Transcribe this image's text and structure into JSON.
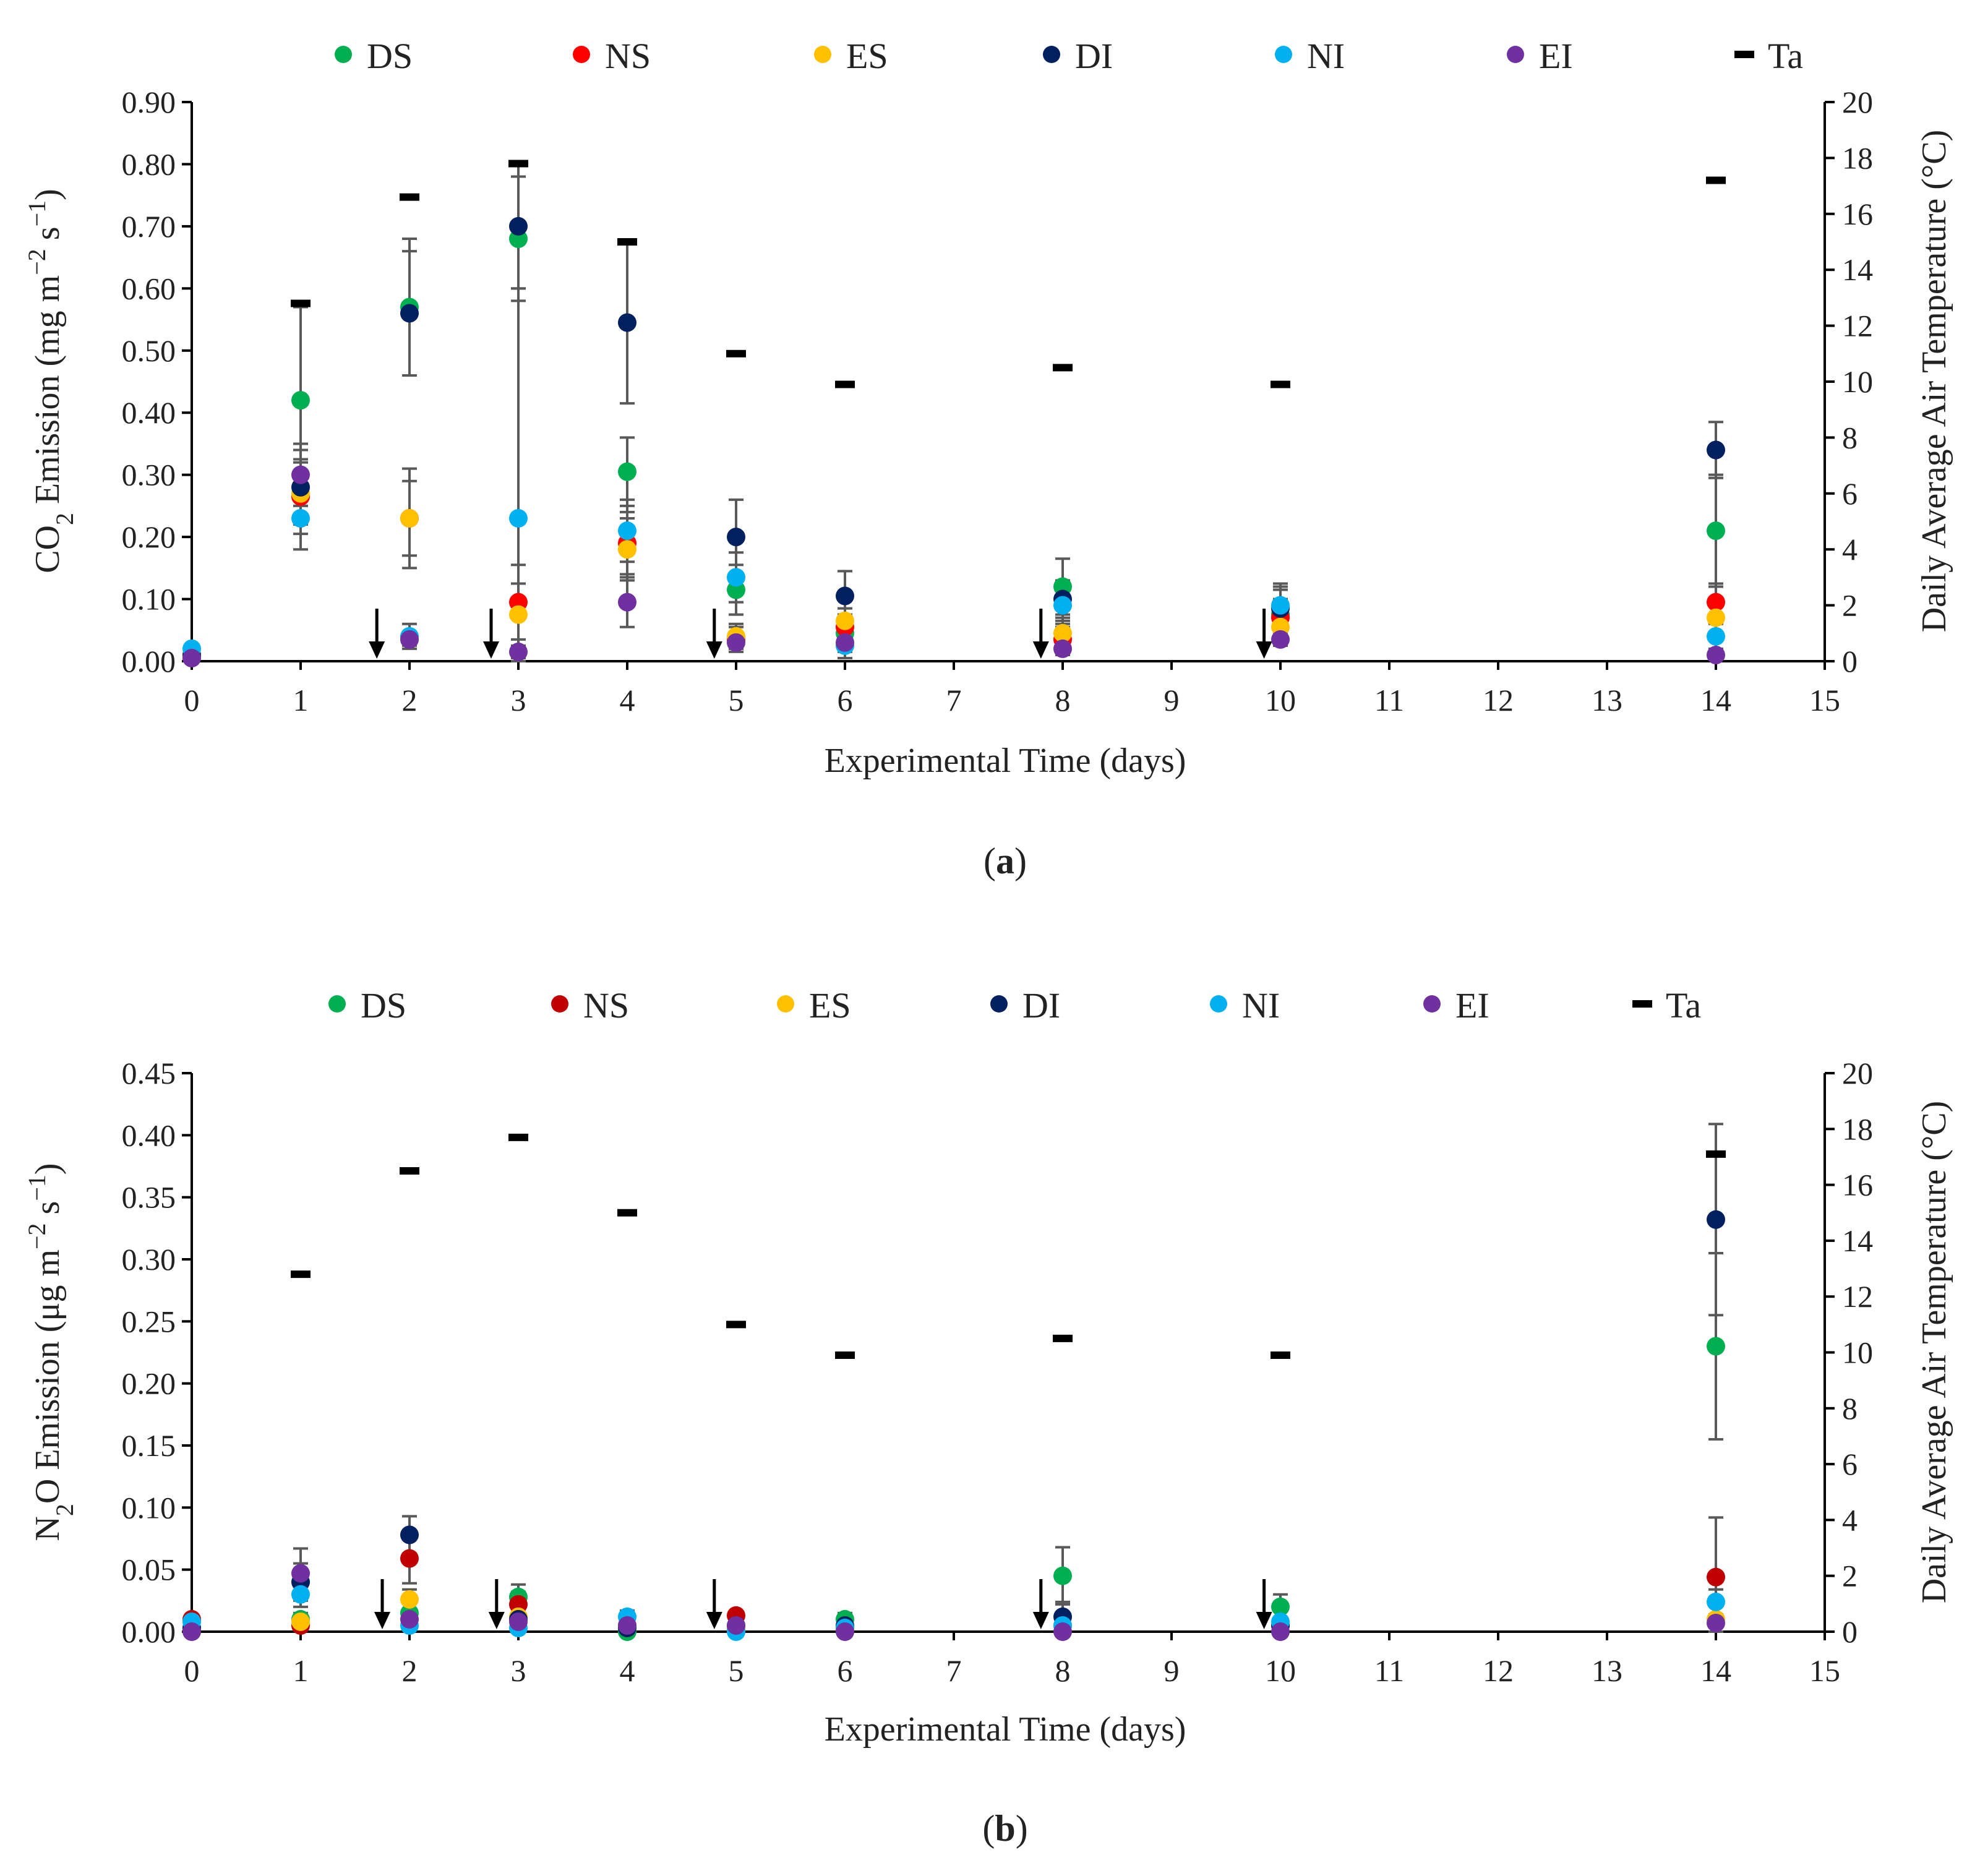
{
  "colors": {
    "DS": "#00b050",
    "NS": "#ff0000",
    "NS_b": "#c00000",
    "ES": "#ffc000",
    "DI": "#002060",
    "NI": "#00b0f0",
    "EI": "#7030a0",
    "Ta": "#000000"
  },
  "chart_data": [
    {
      "type": "scatter",
      "panel": "a",
      "caption_open": "(",
      "caption_letter": "a",
      "caption_close": ")",
      "title": "",
      "xlabel": "Experimental Time (days)",
      "ylabel": "CO2 Emission (mg m−2 s−1)",
      "ylabel_parts": [
        "CO",
        "2",
        " Emission (mg m",
        "−2",
        " s",
        "−1",
        ")"
      ],
      "y2label": "Daily Average Air Temperature (°C)",
      "xlim": [
        0,
        15
      ],
      "ylim": [
        0,
        0.9
      ],
      "y2lim": [
        0,
        20
      ],
      "x_ticks": [
        "0",
        "1",
        "2",
        "3",
        "4",
        "5",
        "6",
        "7",
        "8",
        "9",
        "10",
        "11",
        "12",
        "13",
        "14",
        "15"
      ],
      "y_ticks": [
        "0.00",
        "0.10",
        "0.20",
        "0.30",
        "0.40",
        "0.50",
        "0.60",
        "0.70",
        "0.80",
        "0.90"
      ],
      "y2_ticks": [
        "0",
        "2",
        "4",
        "6",
        "8",
        "10",
        "12",
        "14",
        "16",
        "18",
        "20"
      ],
      "legend": [
        {
          "name": "DS",
          "marker": "circle",
          "color_key": "DS"
        },
        {
          "name": "NS",
          "marker": "circle",
          "color_key": "NS"
        },
        {
          "name": "ES",
          "marker": "circle",
          "color_key": "ES"
        },
        {
          "name": "DI",
          "marker": "circle",
          "color_key": "DI"
        },
        {
          "name": "NI",
          "marker": "circle",
          "color_key": "NI"
        },
        {
          "name": "EI",
          "marker": "circle",
          "color_key": "EI"
        },
        {
          "name": "Ta",
          "marker": "dash",
          "color_key": "Ta"
        }
      ],
      "arrows_x": [
        1.7,
        2.75,
        4.8,
        7.8,
        9.85
      ],
      "series": [
        {
          "name": "DS",
          "color_key": "DS",
          "points": [
            {
              "x": 0,
              "y": 0.01
            },
            {
              "x": 1,
              "y": 0.42,
              "err": 0.15
            },
            {
              "x": 2,
              "y": 0.57,
              "err": 0.11
            },
            {
              "x": 3,
              "y": 0.68,
              "err": 0.1
            },
            {
              "x": 4,
              "y": 0.305,
              "err": 0.055
            },
            {
              "x": 5,
              "y": 0.115,
              "err": 0.04
            },
            {
              "x": 6,
              "y": 0.045,
              "err": 0.03
            },
            {
              "x": 8,
              "y": 0.12,
              "err": 0.045
            },
            {
              "x": 10,
              "y": 0.075,
              "err": 0.05
            },
            {
              "x": 14,
              "y": 0.21,
              "err": 0.09
            }
          ]
        },
        {
          "name": "NS",
          "color_key": "NS",
          "points": [
            {
              "x": 0,
              "y": 0.01
            },
            {
              "x": 1,
              "y": 0.265,
              "err": 0.06
            },
            {
              "x": 2,
              "y": 0.23,
              "err": 0.08
            },
            {
              "x": 3,
              "y": 0.095,
              "err": 0.06
            },
            {
              "x": 4,
              "y": 0.19,
              "err": 0.05
            },
            {
              "x": 5,
              "y": 0.035,
              "err": 0.02
            },
            {
              "x": 6,
              "y": 0.055,
              "err": 0.02
            },
            {
              "x": 8,
              "y": 0.035,
              "err": 0.02
            },
            {
              "x": 10,
              "y": 0.07,
              "err": 0.03
            },
            {
              "x": 14,
              "y": 0.095,
              "err": 0.03
            }
          ]
        },
        {
          "name": "ES",
          "color_key": "ES",
          "points": [
            {
              "x": 0,
              "y": 0.01
            },
            {
              "x": 1,
              "y": 0.27,
              "err": 0.05
            },
            {
              "x": 2,
              "y": 0.23,
              "err": 0.06
            },
            {
              "x": 3,
              "y": 0.075,
              "err": 0.05
            },
            {
              "x": 4,
              "y": 0.18,
              "err": 0.05
            },
            {
              "x": 5,
              "y": 0.04,
              "err": 0.02
            },
            {
              "x": 6,
              "y": 0.065,
              "err": 0.02
            },
            {
              "x": 8,
              "y": 0.045,
              "err": 0.02
            },
            {
              "x": 10,
              "y": 0.055,
              "err": 0.02
            },
            {
              "x": 14,
              "y": 0.07,
              "err": 0.03
            }
          ]
        },
        {
          "name": "DI",
          "color_key": "DI",
          "points": [
            {
              "x": 0,
              "y": 0.01
            },
            {
              "x": 1,
              "y": 0.28,
              "err": 0.06
            },
            {
              "x": 2,
              "y": 0.56,
              "err": 0.1
            },
            {
              "x": 3,
              "y": 0.7,
              "err": 0.1
            },
            {
              "x": 4,
              "y": 0.545,
              "err": 0.13
            },
            {
              "x": 5,
              "y": 0.2,
              "err": 0.06
            },
            {
              "x": 6,
              "y": 0.105,
              "err": 0.04
            },
            {
              "x": 8,
              "y": 0.1,
              "err": 0.03
            },
            {
              "x": 10,
              "y": 0.085,
              "err": 0.03
            },
            {
              "x": 14,
              "y": 0.34,
              "err": 0.045
            }
          ]
        },
        {
          "name": "NI",
          "color_key": "NI",
          "points": [
            {
              "x": 0,
              "y": 0.02
            },
            {
              "x": 1,
              "y": 0.23,
              "err": 0.05
            },
            {
              "x": 2,
              "y": 0.04,
              "err": 0.02
            },
            {
              "x": 3,
              "y": 0.23,
              "err": 0.37
            },
            {
              "x": 4,
              "y": 0.21,
              "err": 0.05
            },
            {
              "x": 5,
              "y": 0.135,
              "err": 0.04
            },
            {
              "x": 6,
              "y": 0.025,
              "err": 0.02
            },
            {
              "x": 8,
              "y": 0.09,
              "err": 0.03
            },
            {
              "x": 10,
              "y": 0.09,
              "err": 0.03
            },
            {
              "x": 14,
              "y": 0.04,
              "err": 0.02
            }
          ]
        },
        {
          "name": "EI",
          "color_key": "EI",
          "points": [
            {
              "x": 0,
              "y": 0.005
            },
            {
              "x": 1,
              "y": 0.3,
              "err": 0.05
            },
            {
              "x": 2,
              "y": 0.035,
              "err": 0.01
            },
            {
              "x": 3,
              "y": 0.015,
              "err": 0.01
            },
            {
              "x": 4,
              "y": 0.095,
              "err": 0.04
            },
            {
              "x": 5,
              "y": 0.03,
              "err": 0.01
            },
            {
              "x": 6,
              "y": 0.03,
              "err": 0.01
            },
            {
              "x": 8,
              "y": 0.02,
              "err": 0.01
            },
            {
              "x": 10,
              "y": 0.035,
              "err": 0.01
            },
            {
              "x": 14,
              "y": 0.01,
              "err": 0.005
            }
          ]
        }
      ],
      "temperature": [
        {
          "x": 1,
          "y": 12.8
        },
        {
          "x": 2,
          "y": 16.6
        },
        {
          "x": 3,
          "y": 17.8
        },
        {
          "x": 4,
          "y": 15.0
        },
        {
          "x": 5,
          "y": 11.0
        },
        {
          "x": 6,
          "y": 9.9
        },
        {
          "x": 8,
          "y": 10.5
        },
        {
          "x": 10,
          "y": 9.9
        },
        {
          "x": 14,
          "y": 17.2
        }
      ]
    },
    {
      "type": "scatter",
      "panel": "b",
      "caption_open": "(",
      "caption_letter": "b",
      "caption_close": ")",
      "title": "",
      "xlabel": "Experimental Time (days)",
      "ylabel": "N2O Emission (μg m−2 s−1)",
      "ylabel_parts": [
        "N",
        "2",
        "O Emission (μg m",
        "−2",
        " s",
        "−1",
        ")"
      ],
      "y2label": "Daily Average Air Temperature (°C)",
      "xlim": [
        0,
        15
      ],
      "ylim": [
        0,
        0.45
      ],
      "y2lim": [
        0,
        20
      ],
      "x_ticks": [
        "0",
        "1",
        "2",
        "3",
        "4",
        "5",
        "6",
        "7",
        "8",
        "9",
        "10",
        "11",
        "12",
        "13",
        "14",
        "15"
      ],
      "y_ticks": [
        "0.00",
        "0.05",
        "0.10",
        "0.15",
        "0.20",
        "0.25",
        "0.30",
        "0.35",
        "0.40",
        "0.45"
      ],
      "y2_ticks": [
        "0",
        "2",
        "4",
        "6",
        "8",
        "10",
        "12",
        "14",
        "16",
        "18",
        "20"
      ],
      "legend": [
        {
          "name": "DS",
          "marker": "circle",
          "color_key": "DS"
        },
        {
          "name": "NS",
          "marker": "circle",
          "color_key": "NS_b"
        },
        {
          "name": "ES",
          "marker": "circle",
          "color_key": "ES"
        },
        {
          "name": "DI",
          "marker": "circle",
          "color_key": "DI"
        },
        {
          "name": "NI",
          "marker": "circle",
          "color_key": "NI"
        },
        {
          "name": "EI",
          "marker": "circle",
          "color_key": "EI"
        },
        {
          "name": "Ta",
          "marker": "dash",
          "color_key": "Ta"
        }
      ],
      "arrows_x": [
        1.75,
        2.8,
        4.8,
        7.8,
        9.85
      ],
      "series": [
        {
          "name": "DS",
          "color_key": "DS",
          "points": [
            {
              "x": 0,
              "y": 0.003
            },
            {
              "x": 1,
              "y": 0.01,
              "err": 0.005
            },
            {
              "x": 2,
              "y": 0.015,
              "err": 0.01
            },
            {
              "x": 3,
              "y": 0.028,
              "err": 0.01
            },
            {
              "x": 4,
              "y": 0.0,
              "err": 0.005
            },
            {
              "x": 5,
              "y": 0.003
            },
            {
              "x": 6,
              "y": 0.01,
              "err": 0.005
            },
            {
              "x": 8,
              "y": 0.045,
              "err": 0.023
            },
            {
              "x": 10,
              "y": 0.02,
              "err": 0.01
            },
            {
              "x": 14,
              "y": 0.23,
              "err": 0.075
            }
          ]
        },
        {
          "name": "NS",
          "color_key": "NS_b",
          "points": [
            {
              "x": 0,
              "y": 0.01
            },
            {
              "x": 1,
              "y": 0.005
            },
            {
              "x": 2,
              "y": 0.059,
              "err": 0.02
            },
            {
              "x": 3,
              "y": 0.022,
              "err": 0.01
            },
            {
              "x": 4,
              "y": 0.005
            },
            {
              "x": 5,
              "y": 0.013
            },
            {
              "x": 6,
              "y": 0.003
            },
            {
              "x": 8,
              "y": 0.005
            },
            {
              "x": 10,
              "y": 0.005
            },
            {
              "x": 14,
              "y": 0.044,
              "err": 0.048
            }
          ]
        },
        {
          "name": "ES",
          "color_key": "ES",
          "points": [
            {
              "x": 0,
              "y": 0.003
            },
            {
              "x": 1,
              "y": 0.008
            },
            {
              "x": 2,
              "y": 0.026,
              "err": 0.008
            },
            {
              "x": 3,
              "y": 0.012
            },
            {
              "x": 4,
              "y": 0.005
            },
            {
              "x": 5,
              "y": 0.003
            },
            {
              "x": 6,
              "y": 0.003
            },
            {
              "x": 8,
              "y": 0.005
            },
            {
              "x": 10,
              "y": 0.005
            },
            {
              "x": 14,
              "y": 0.01
            }
          ]
        },
        {
          "name": "DI",
          "color_key": "DI",
          "points": [
            {
              "x": 0,
              "y": 0.003
            },
            {
              "x": 1,
              "y": 0.04,
              "err": 0.015
            },
            {
              "x": 2,
              "y": 0.078,
              "err": 0.015
            },
            {
              "x": 3,
              "y": 0.01
            },
            {
              "x": 4,
              "y": 0.003
            },
            {
              "x": 5,
              "y": 0.005
            },
            {
              "x": 6,
              "y": 0.005
            },
            {
              "x": 8,
              "y": 0.012,
              "err": 0.012
            },
            {
              "x": 10,
              "y": 0.005
            },
            {
              "x": 14,
              "y": 0.332,
              "err": 0.077
            }
          ]
        },
        {
          "name": "NI",
          "color_key": "NI",
          "points": [
            {
              "x": 0,
              "y": 0.008
            },
            {
              "x": 1,
              "y": 0.03,
              "err": 0.01
            },
            {
              "x": 2,
              "y": 0.005
            },
            {
              "x": 3,
              "y": 0.003
            },
            {
              "x": 4,
              "y": 0.012,
              "err": 0.005
            },
            {
              "x": 5,
              "y": 0.0
            },
            {
              "x": 6,
              "y": 0.003
            },
            {
              "x": 8,
              "y": 0.005
            },
            {
              "x": 10,
              "y": 0.008
            },
            {
              "x": 14,
              "y": 0.024,
              "err": 0.01
            }
          ]
        },
        {
          "name": "EI",
          "color_key": "EI",
          "points": [
            {
              "x": 0,
              "y": 0.0
            },
            {
              "x": 1,
              "y": 0.047,
              "err": 0.02
            },
            {
              "x": 2,
              "y": 0.01
            },
            {
              "x": 3,
              "y": 0.008
            },
            {
              "x": 4,
              "y": 0.005
            },
            {
              "x": 5,
              "y": 0.005
            },
            {
              "x": 6,
              "y": 0.0
            },
            {
              "x": 8,
              "y": 0.0
            },
            {
              "x": 10,
              "y": 0.0
            },
            {
              "x": 14,
              "y": 0.007
            }
          ]
        }
      ],
      "temperature": [
        {
          "x": 1,
          "y": 12.8
        },
        {
          "x": 2,
          "y": 16.5
        },
        {
          "x": 3,
          "y": 17.7
        },
        {
          "x": 4,
          "y": 15.0
        },
        {
          "x": 5,
          "y": 11.0
        },
        {
          "x": 6,
          "y": 9.9
        },
        {
          "x": 8,
          "y": 10.5
        },
        {
          "x": 10,
          "y": 9.9
        },
        {
          "x": 14,
          "y": 17.1
        }
      ]
    }
  ]
}
